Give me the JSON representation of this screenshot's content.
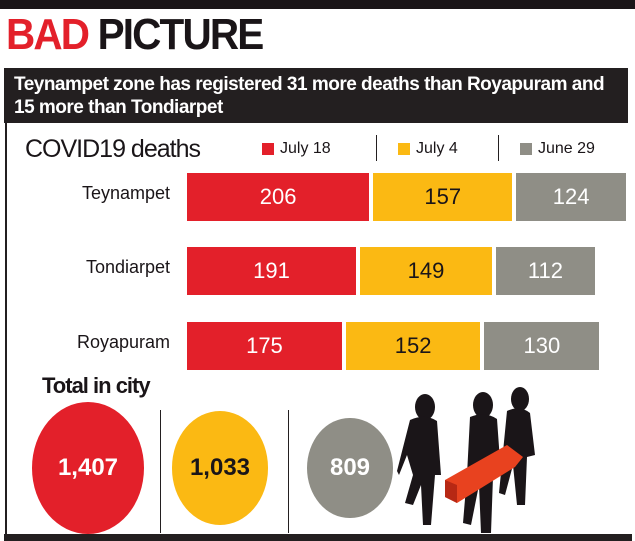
{
  "headline": {
    "part1": "BAD",
    "part2": "PICTURE"
  },
  "subtitle": "Teynampet zone has registered 31 more deaths than Royapuram and 15 more than Tondiarpet",
  "chart_data": {
    "type": "bar",
    "orientation": "horizontal-stacked",
    "title": "COVID19 deaths",
    "categories": [
      "Teynampet",
      "Tondiarpet",
      "Royapuram"
    ],
    "series": [
      {
        "name": "July 18",
        "color": "#e3202a",
        "values": [
          206,
          191,
          175
        ]
      },
      {
        "name": "July 4",
        "color": "#fbb913",
        "values": [
          157,
          149,
          152
        ]
      },
      {
        "name": "June 29",
        "color": "#8f8e86",
        "values": [
          124,
          112,
          130
        ]
      }
    ],
    "totals_title": "Total in city",
    "totals": [
      {
        "series": "July 18",
        "label": "1,407",
        "value": 1407,
        "text_color": "#ffffff"
      },
      {
        "series": "July 4",
        "label": "1,033",
        "value": 1033,
        "text_color": "#1a1518"
      },
      {
        "series": "June 29",
        "label": "809",
        "value": 809,
        "text_color": "#ffffff"
      }
    ]
  }
}
